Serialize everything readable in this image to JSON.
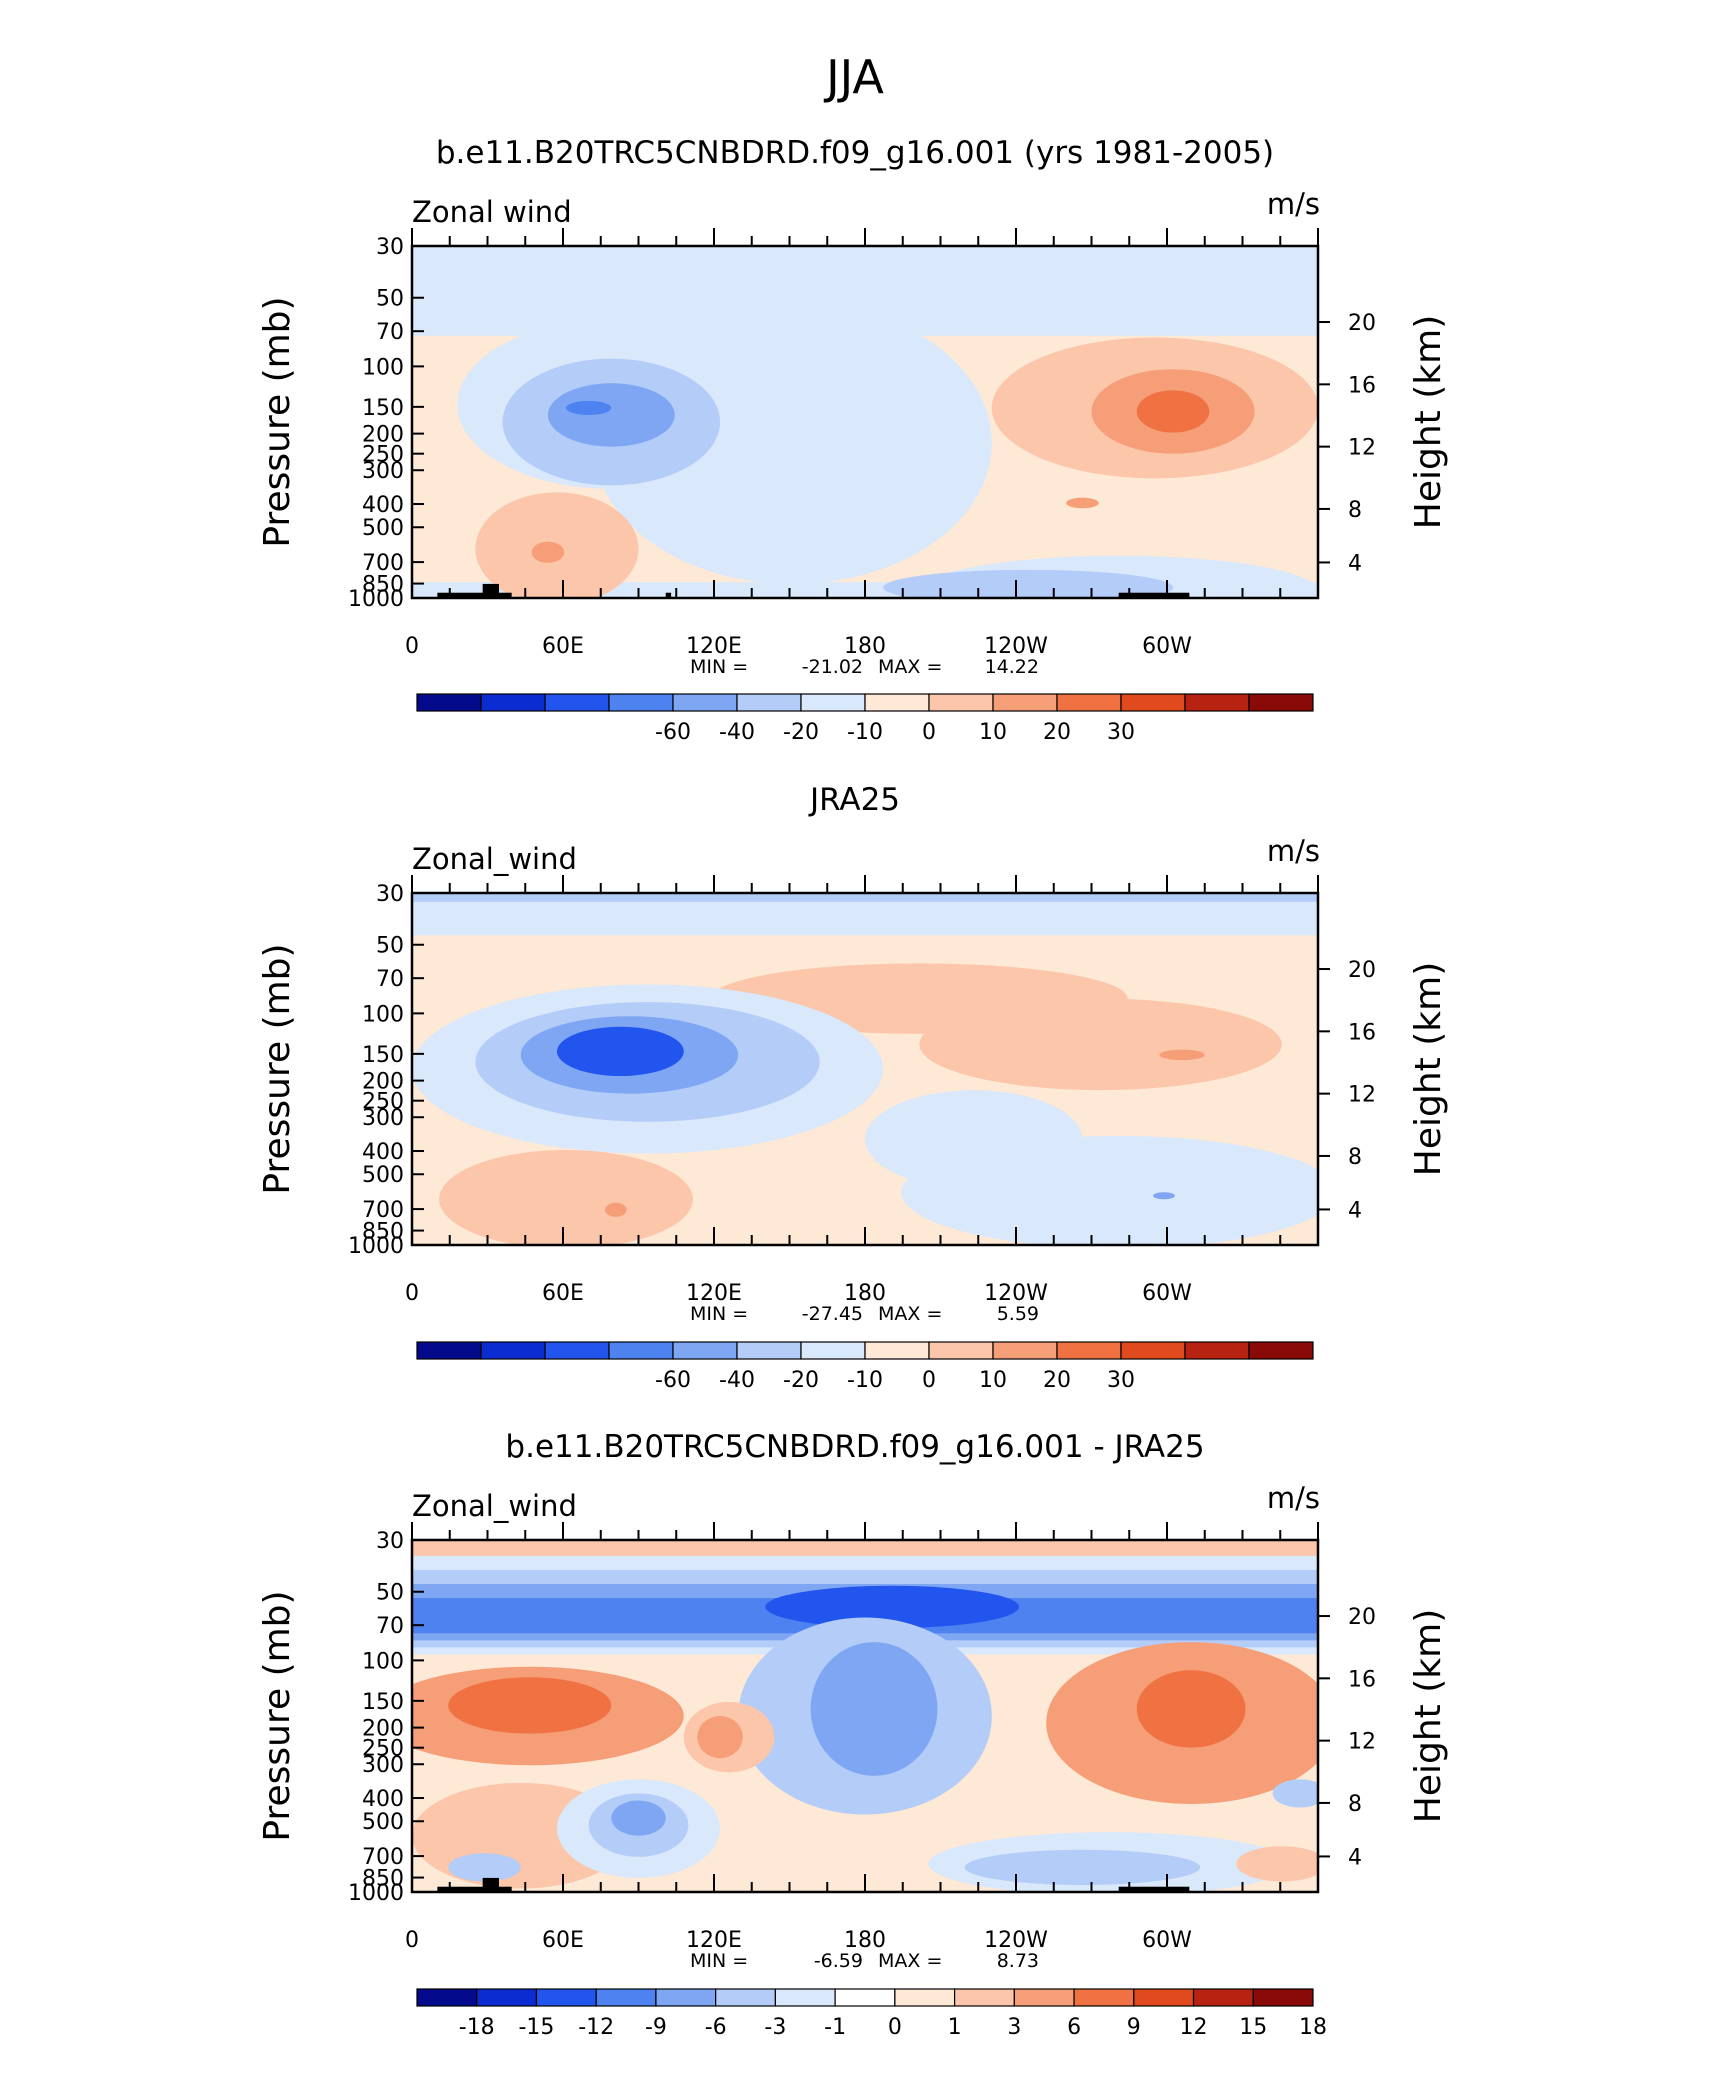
{
  "figure": {
    "title": "JJA"
  },
  "chart_data": [
    {
      "type": "heatmap",
      "title": "b.e11.B20TRC5CNBDRD.f09_g16.001 (yrs 1981-2005)",
      "left_label": "Zonal wind",
      "units": "m/s",
      "ylabel": "Pressure (mb)",
      "ylabel_right": "Height (km)",
      "y_ticks": [
        "30",
        "50",
        "70",
        "100",
        "150",
        "200",
        "250",
        "300",
        "400",
        "500",
        "700",
        "850",
        "1000"
      ],
      "y_ticks_right": [
        "20",
        "16",
        "12",
        "8",
        "4"
      ],
      "x_ticks": [
        "0",
        "60E",
        "120E",
        "180",
        "120W",
        "60W"
      ],
      "min": "-21.02",
      "max": "14.22",
      "min_label": "MIN =",
      "max_label": "MAX =",
      "colorbar_labels": [
        "-60",
        "-40",
        "-20",
        "-10",
        "0",
        "10",
        "20",
        "30"
      ],
      "colorbar_colors": [
        "#030a8c",
        "#0b2cd0",
        "#2255ee",
        "#4d82f0",
        "#7fa6f3",
        "#b3ccf8",
        "#d9e8fb",
        "#fee8d6",
        "#fbc6a9",
        "#f69e78",
        "#f07242",
        "#e04a1c",
        "#b82210",
        "#8a0a08"
      ],
      "features": [
        {
          "kind": "westerly_jet",
          "longitude_range": "15E-105E",
          "pressure_mb": 150,
          "peak_ms": -21.02
        },
        {
          "kind": "easterly_jet",
          "longitude_range": "105W-30W",
          "pressure_mb": 150,
          "peak_ms": 14.22
        }
      ]
    },
    {
      "type": "heatmap",
      "title": "JRA25",
      "left_label": "Zonal_wind",
      "units": "m/s",
      "ylabel": "Pressure (mb)",
      "ylabel_right": "Height (km)",
      "y_ticks": [
        "30",
        "50",
        "70",
        "100",
        "150",
        "200",
        "250",
        "300",
        "400",
        "500",
        "700",
        "850",
        "1000"
      ],
      "y_ticks_right": [
        "20",
        "16",
        "12",
        "8",
        "4"
      ],
      "x_ticks": [
        "0",
        "60E",
        "120E",
        "180",
        "120W",
        "60W"
      ],
      "min": "-27.45",
      "max": "5.59",
      "min_label": "MIN =",
      "max_label": "MAX =",
      "colorbar_labels": [
        "-60",
        "-40",
        "-20",
        "-10",
        "0",
        "10",
        "20",
        "30"
      ],
      "colorbar_colors": [
        "#030a8c",
        "#0b2cd0",
        "#2255ee",
        "#4d82f0",
        "#7fa6f3",
        "#b3ccf8",
        "#d9e8fb",
        "#fee8d6",
        "#fbc6a9",
        "#f69e78",
        "#f07242",
        "#e04a1c",
        "#b82210",
        "#8a0a08"
      ],
      "features": [
        {
          "kind": "westerly_jet",
          "longitude_range": "15E-135E",
          "pressure_mb": 150,
          "peak_ms": -27.45
        },
        {
          "kind": "weak_positive",
          "longitude_range": "110E-30W",
          "pressure_mb": 70,
          "peak_ms": 5.59
        }
      ]
    },
    {
      "type": "heatmap",
      "title": "b.e11.B20TRC5CNBDRD.f09_g16.001 - JRA25",
      "left_label": "Zonal_wind",
      "units": "m/s",
      "ylabel": "Pressure (mb)",
      "ylabel_right": "Height (km)",
      "y_ticks": [
        "30",
        "50",
        "70",
        "100",
        "150",
        "200",
        "250",
        "300",
        "400",
        "500",
        "700",
        "850",
        "1000"
      ],
      "y_ticks_right": [
        "20",
        "16",
        "12",
        "8",
        "4"
      ],
      "x_ticks": [
        "0",
        "60E",
        "120E",
        "180",
        "120W",
        "60W"
      ],
      "min": "-6.59",
      "max": "8.73",
      "min_label": "MIN =",
      "max_label": "MAX =",
      "colorbar_labels": [
        "-18",
        "-15",
        "-12",
        "-9",
        "-6",
        "-3",
        "-1",
        "0",
        "1",
        "3",
        "6",
        "9",
        "12",
        "15",
        "18"
      ],
      "colorbar_colors": [
        "#030a8c",
        "#0b2cd0",
        "#2255ee",
        "#4d82f0",
        "#7fa6f3",
        "#b3ccf8",
        "#d9e8fb",
        "#ffffff",
        "#fee8d6",
        "#fbc6a9",
        "#f69e78",
        "#f07242",
        "#e04a1c",
        "#b82210",
        "#8a0a08"
      ],
      "features": [
        {
          "kind": "negative_band",
          "pressure_mb": 60,
          "peak_ms": -6.59
        },
        {
          "kind": "positive_region",
          "longitude_range": "100W-0",
          "pressure_mb": 150,
          "peak_ms": 8.73
        }
      ]
    }
  ]
}
